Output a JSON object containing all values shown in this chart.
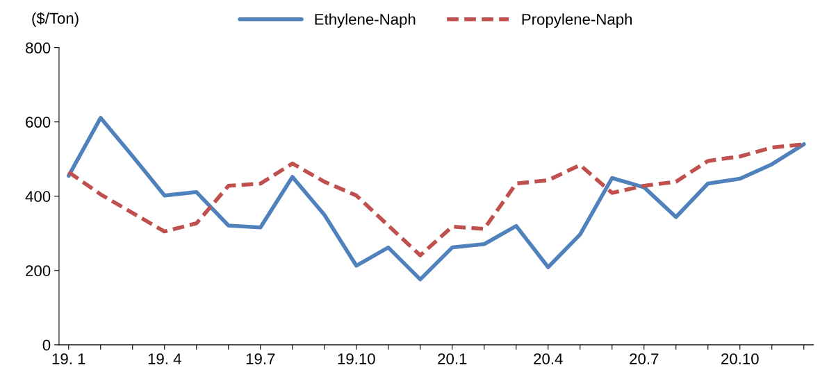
{
  "chart_data": {
    "type": "line",
    "ylabel": "($/Ton)",
    "categories": [
      "19. 1",
      null,
      null,
      "19. 4",
      null,
      null,
      "19.7",
      null,
      null,
      "19.10",
      null,
      null,
      "20.1",
      null,
      null,
      "20.4",
      null,
      null,
      "20.7",
      null,
      null,
      "20.10",
      null,
      null
    ],
    "series": [
      {
        "name": "Ethylene-Naph",
        "color": "#4f81bd",
        "line_style": "solid",
        "values": [
          455,
          611,
          508,
          402,
          411,
          321,
          316,
          452,
          350,
          213,
          262,
          176,
          262,
          271,
          320,
          209,
          297,
          449,
          424,
          344,
          434,
          447,
          486,
          540
        ]
      },
      {
        "name": "Propylene-Naph",
        "color": "#c0504d",
        "line_style": "dashed",
        "values": [
          465,
          405,
          355,
          305,
          327,
          428,
          434,
          488,
          439,
          402,
          321,
          241,
          318,
          312,
          434,
          443,
          484,
          409,
          428,
          439,
          495,
          507,
          531,
          540
        ]
      }
    ],
    "ylim": [
      0,
      800
    ],
    "yticks": [
      0,
      200,
      400,
      600,
      800
    ],
    "grid": false,
    "legend": "top",
    "marker": "none"
  }
}
